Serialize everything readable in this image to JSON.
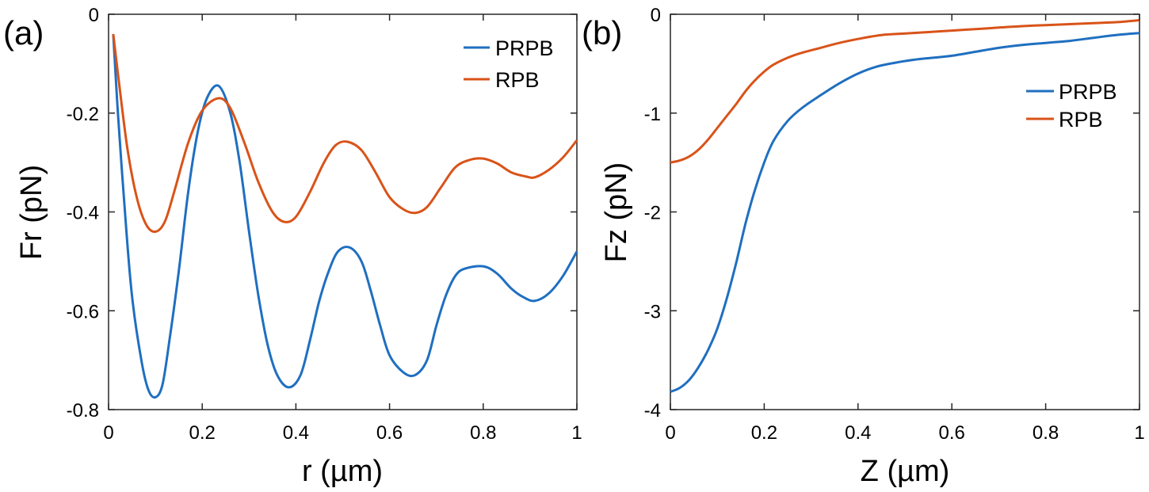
{
  "chart_data": [
    {
      "type": "line",
      "panel_label": "(a)",
      "xlabel": "r (µm)",
      "ylabel": "Fr (pN)",
      "xlim": [
        0,
        1
      ],
      "ylim": [
        -0.8,
        0
      ],
      "xticks": [
        0,
        0.2,
        0.4,
        0.6,
        0.8,
        1
      ],
      "xtick_labels": [
        "0",
        "0.2",
        "0.4",
        "0.6",
        "0.8",
        "1"
      ],
      "yticks": [
        -0.8,
        -0.6,
        -0.4,
        -0.2,
        0
      ],
      "ytick_labels": [
        "-0.8",
        "-0.6",
        "-0.4",
        "-0.2",
        "0"
      ],
      "grid": false,
      "legend_position": "top-right",
      "series": [
        {
          "name": "PRPB",
          "color": "#1f6fc0",
          "points": [
            [
              0.01,
              -0.04
            ],
            [
              0.02,
              -0.2
            ],
            [
              0.035,
              -0.4
            ],
            [
              0.05,
              -0.57
            ],
            [
              0.07,
              -0.7
            ],
            [
              0.085,
              -0.76
            ],
            [
              0.1,
              -0.775
            ],
            [
              0.115,
              -0.75
            ],
            [
              0.13,
              -0.66
            ],
            [
              0.15,
              -0.52
            ],
            [
              0.17,
              -0.36
            ],
            [
              0.19,
              -0.24
            ],
            [
              0.21,
              -0.17
            ],
            [
              0.235,
              -0.145
            ],
            [
              0.26,
              -0.2
            ],
            [
              0.28,
              -0.3
            ],
            [
              0.3,
              -0.44
            ],
            [
              0.32,
              -0.57
            ],
            [
              0.34,
              -0.67
            ],
            [
              0.36,
              -0.73
            ],
            [
              0.385,
              -0.755
            ],
            [
              0.41,
              -0.73
            ],
            [
              0.43,
              -0.66
            ],
            [
              0.45,
              -0.58
            ],
            [
              0.47,
              -0.52
            ],
            [
              0.49,
              -0.48
            ],
            [
              0.515,
              -0.472
            ],
            [
              0.54,
              -0.5
            ],
            [
              0.56,
              -0.56
            ],
            [
              0.58,
              -0.63
            ],
            [
              0.6,
              -0.69
            ],
            [
              0.63,
              -0.725
            ],
            [
              0.655,
              -0.73
            ],
            [
              0.68,
              -0.7
            ],
            [
              0.7,
              -0.63
            ],
            [
              0.72,
              -0.57
            ],
            [
              0.74,
              -0.53
            ],
            [
              0.76,
              -0.515
            ],
            [
              0.8,
              -0.51
            ],
            [
              0.83,
              -0.525
            ],
            [
              0.86,
              -0.555
            ],
            [
              0.885,
              -0.572
            ],
            [
              0.91,
              -0.58
            ],
            [
              0.94,
              -0.565
            ],
            [
              0.97,
              -0.53
            ],
            [
              1.0,
              -0.48
            ]
          ]
        },
        {
          "name": "RPB",
          "color": "#d95319",
          "points": [
            [
              0.01,
              -0.04
            ],
            [
              0.02,
              -0.12
            ],
            [
              0.04,
              -0.27
            ],
            [
              0.06,
              -0.37
            ],
            [
              0.08,
              -0.425
            ],
            [
              0.1,
              -0.44
            ],
            [
              0.12,
              -0.42
            ],
            [
              0.14,
              -0.36
            ],
            [
              0.17,
              -0.26
            ],
            [
              0.2,
              -0.195
            ],
            [
              0.235,
              -0.17
            ],
            [
              0.26,
              -0.19
            ],
            [
              0.29,
              -0.26
            ],
            [
              0.32,
              -0.34
            ],
            [
              0.35,
              -0.4
            ],
            [
              0.375,
              -0.42
            ],
            [
              0.4,
              -0.41
            ],
            [
              0.43,
              -0.36
            ],
            [
              0.46,
              -0.3
            ],
            [
              0.485,
              -0.265
            ],
            [
              0.51,
              -0.258
            ],
            [
              0.54,
              -0.275
            ],
            [
              0.57,
              -0.32
            ],
            [
              0.6,
              -0.37
            ],
            [
              0.63,
              -0.395
            ],
            [
              0.655,
              -0.402
            ],
            [
              0.68,
              -0.39
            ],
            [
              0.71,
              -0.35
            ],
            [
              0.74,
              -0.31
            ],
            [
              0.77,
              -0.295
            ],
            [
              0.8,
              -0.292
            ],
            [
              0.83,
              -0.302
            ],
            [
              0.86,
              -0.32
            ],
            [
              0.89,
              -0.328
            ],
            [
              0.91,
              -0.33
            ],
            [
              0.94,
              -0.315
            ],
            [
              0.97,
              -0.29
            ],
            [
              1.0,
              -0.255
            ]
          ]
        }
      ]
    },
    {
      "type": "line",
      "panel_label": "(b)",
      "xlabel": "Z (µm)",
      "ylabel": "Fz (pN)",
      "xlim": [
        0,
        1
      ],
      "ylim": [
        -4,
        0
      ],
      "xticks": [
        0,
        0.2,
        0.4,
        0.6,
        0.8,
        1
      ],
      "xtick_labels": [
        "0",
        "0.2",
        "0.4",
        "0.6",
        "0.8",
        "1"
      ],
      "yticks": [
        -4,
        -3,
        -2,
        -1,
        0
      ],
      "ytick_labels": [
        "-4",
        "-3",
        "-2",
        "-1",
        "0"
      ],
      "grid": false,
      "legend_position": "upper-right",
      "series": [
        {
          "name": "PRPB",
          "color": "#1f6fc0",
          "points": [
            [
              0,
              -3.82
            ],
            [
              0.02,
              -3.78
            ],
            [
              0.04,
              -3.7
            ],
            [
              0.06,
              -3.57
            ],
            [
              0.08,
              -3.4
            ],
            [
              0.1,
              -3.18
            ],
            [
              0.12,
              -2.88
            ],
            [
              0.14,
              -2.52
            ],
            [
              0.16,
              -2.12
            ],
            [
              0.18,
              -1.78
            ],
            [
              0.2,
              -1.5
            ],
            [
              0.22,
              -1.28
            ],
            [
              0.25,
              -1.08
            ],
            [
              0.28,
              -0.95
            ],
            [
              0.32,
              -0.82
            ],
            [
              0.36,
              -0.7
            ],
            [
              0.4,
              -0.6
            ],
            [
              0.44,
              -0.53
            ],
            [
              0.48,
              -0.49
            ],
            [
              0.52,
              -0.46
            ],
            [
              0.56,
              -0.44
            ],
            [
              0.6,
              -0.42
            ],
            [
              0.65,
              -0.38
            ],
            [
              0.7,
              -0.34
            ],
            [
              0.75,
              -0.31
            ],
            [
              0.8,
              -0.29
            ],
            [
              0.85,
              -0.27
            ],
            [
              0.9,
              -0.24
            ],
            [
              0.95,
              -0.21
            ],
            [
              1.0,
              -0.19
            ]
          ]
        },
        {
          "name": "RPB",
          "color": "#d95319",
          "points": [
            [
              0,
              -1.5
            ],
            [
              0.02,
              -1.48
            ],
            [
              0.04,
              -1.44
            ],
            [
              0.06,
              -1.37
            ],
            [
              0.08,
              -1.27
            ],
            [
              0.1,
              -1.15
            ],
            [
              0.12,
              -1.03
            ],
            [
              0.14,
              -0.91
            ],
            [
              0.16,
              -0.78
            ],
            [
              0.18,
              -0.67
            ],
            [
              0.2,
              -0.58
            ],
            [
              0.22,
              -0.51
            ],
            [
              0.25,
              -0.44
            ],
            [
              0.28,
              -0.39
            ],
            [
              0.32,
              -0.34
            ],
            [
              0.36,
              -0.29
            ],
            [
              0.4,
              -0.25
            ],
            [
              0.45,
              -0.21
            ],
            [
              0.5,
              -0.195
            ],
            [
              0.55,
              -0.18
            ],
            [
              0.6,
              -0.165
            ],
            [
              0.65,
              -0.15
            ],
            [
              0.7,
              -0.135
            ],
            [
              0.75,
              -0.12
            ],
            [
              0.8,
              -0.11
            ],
            [
              0.85,
              -0.1
            ],
            [
              0.9,
              -0.09
            ],
            [
              0.95,
              -0.08
            ],
            [
              1.0,
              -0.06
            ]
          ]
        }
      ]
    }
  ]
}
